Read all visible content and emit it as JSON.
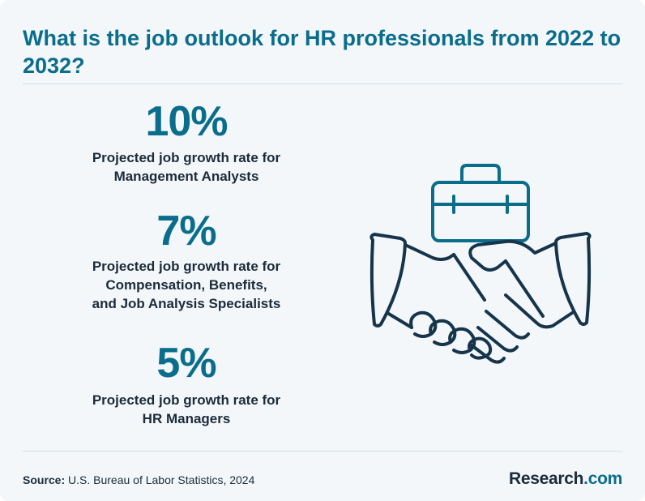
{
  "header": {
    "title": "What is the job outlook for HR professionals from 2022 to 2032?"
  },
  "stats": [
    {
      "value": "10%",
      "label": "Projected job growth rate for\nManagement Analysts"
    },
    {
      "value": "7%",
      "label": "Projected job growth rate for\nCompensation, Benefits,\nand Job Analysis Specialists"
    },
    {
      "value": "5%",
      "label": "Projected job growth rate for\nHR Managers"
    }
  ],
  "illustration": {
    "icons": [
      "briefcase-icon",
      "handshake-icon"
    ],
    "stroke_color": "#16344a",
    "accent_color": "#0a6d8c"
  },
  "footer": {
    "source_prefix": "Source:",
    "source_text": " U.S. Bureau of Labor Statistics, 2024",
    "brand_name": "Research",
    "brand_suffix": ".com"
  },
  "colors": {
    "background": "#f3f7fa",
    "accent": "#0a6d8c",
    "text": "#1c2b39",
    "divider": "#d6dde3"
  }
}
